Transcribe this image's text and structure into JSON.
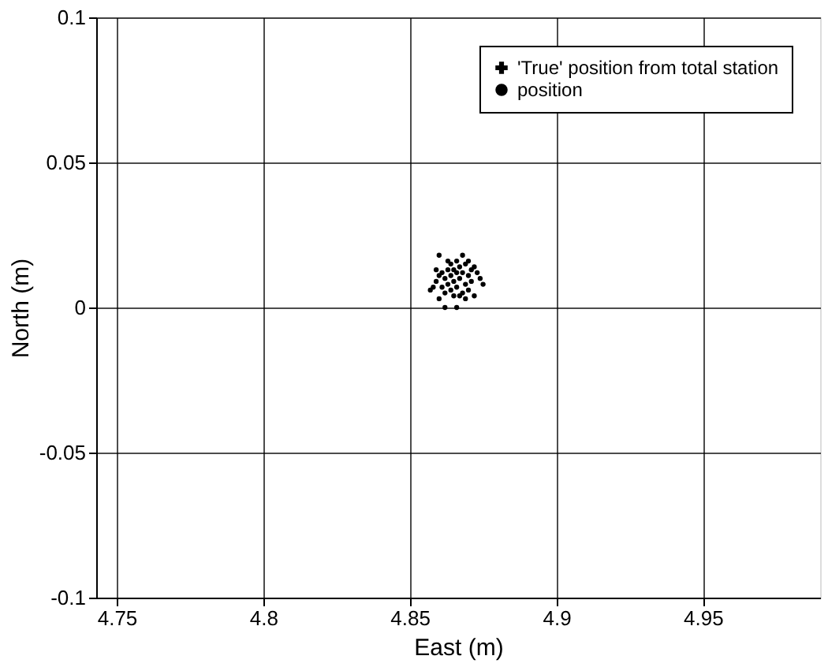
{
  "chart_data": {
    "type": "scatter",
    "xlabel": "East (m)",
    "ylabel": "North (m)",
    "xlim": [
      4.743,
      4.99
    ],
    "xticks": [
      4.75,
      4.8,
      4.85,
      4.9,
      4.95
    ],
    "ylim": [
      -0.1,
      0.1
    ],
    "yticks": [
      -0.1,
      -0.05,
      0,
      0.05,
      0.1
    ],
    "grid": true,
    "legend": "top right",
    "series": [
      {
        "name": "'True' position from total station",
        "color": "#000000",
        "marker": "cross"
      },
      {
        "name": "position",
        "color": "#000000",
        "marker": "circle",
        "x": [
          4.86,
          4.868,
          4.857,
          4.859,
          4.86,
          4.861,
          4.861,
          4.862,
          4.862,
          4.863,
          4.863,
          4.864,
          4.864,
          4.864,
          4.865,
          4.865,
          4.866,
          4.866,
          4.867,
          4.867,
          4.868,
          4.868,
          4.869,
          4.869,
          4.87,
          4.87,
          4.871,
          4.871,
          4.872,
          4.872,
          4.873,
          4.874,
          4.875,
          4.862,
          4.866,
          4.86,
          4.858,
          4.863,
          4.866,
          4.869,
          4.867,
          4.859,
          4.865,
          4.87
        ],
        "values": [
          0.018,
          0.018,
          0.006,
          0.009,
          0.011,
          0.007,
          0.012,
          0.005,
          0.01,
          0.013,
          0.008,
          0.006,
          0.011,
          0.015,
          0.009,
          0.004,
          0.012,
          0.007,
          0.014,
          0.01,
          0.005,
          0.012,
          0.008,
          0.015,
          0.011,
          0.006,
          0.013,
          0.009,
          0.014,
          0.004,
          0.012,
          0.01,
          0.008,
          0.0,
          0.0,
          0.003,
          0.007,
          0.016,
          0.016,
          0.003,
          0.004,
          0.013,
          0.013,
          0.016
        ]
      }
    ]
  }
}
